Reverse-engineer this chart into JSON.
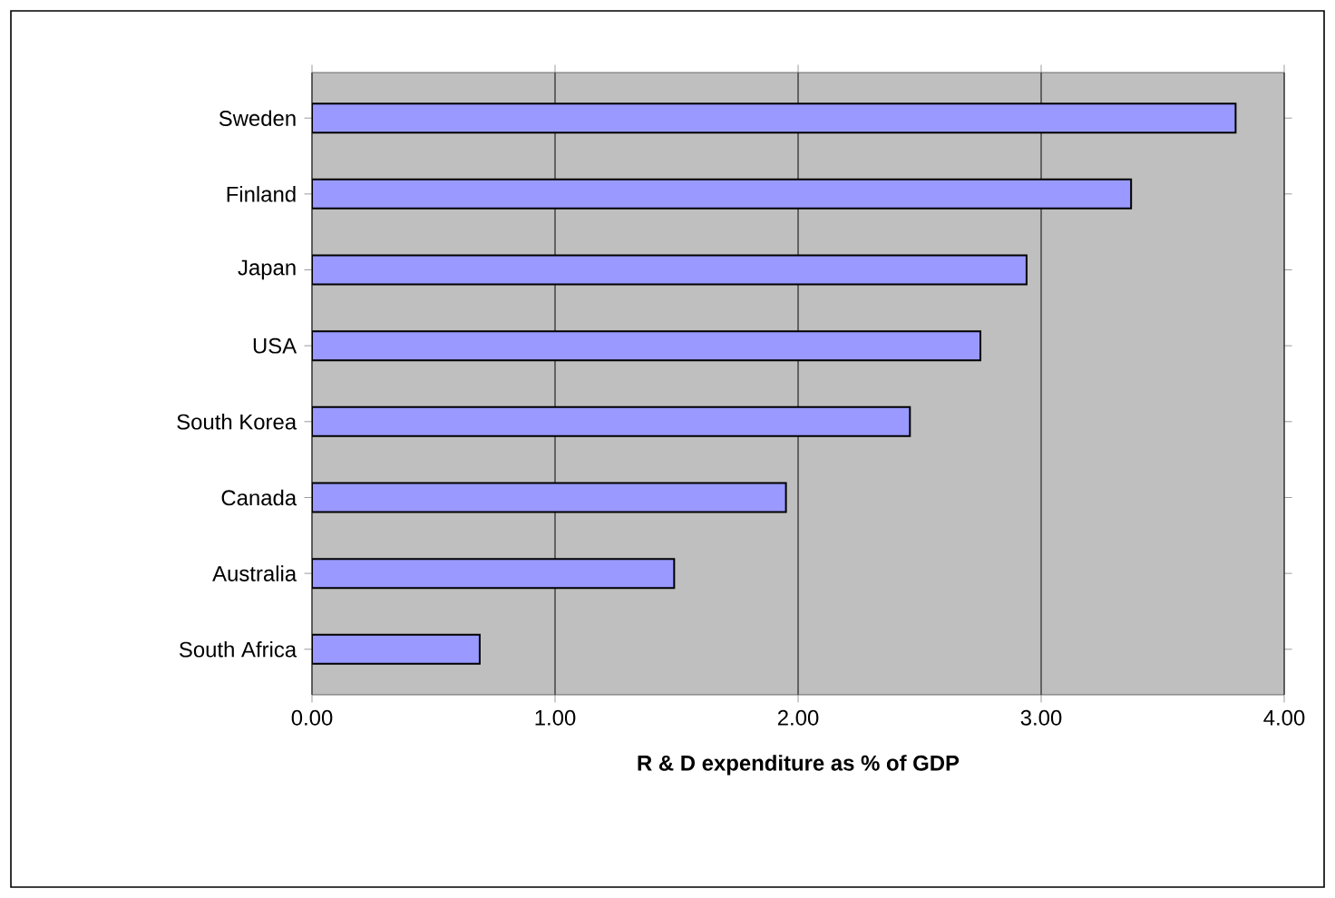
{
  "chart_data": {
    "type": "bar",
    "orientation": "horizontal",
    "xlabel": "**R & D expenditure as % of GDP**",
    "categories": [
      "Sweden",
      "Finland",
      "Japan",
      "USA",
      "South Korea",
      "Canada",
      "Australia",
      "South Africa"
    ],
    "values": [
      3.8,
      3.37,
      2.94,
      2.75,
      2.46,
      1.95,
      1.49,
      0.69
    ],
    "color": "#9999ff",
    "xlim": [
      0,
      4
    ],
    "xticks": [
      {
        "value": 0,
        "label": "0.00"
      },
      {
        "value": 1,
        "label": "1.00"
      },
      {
        "value": 2,
        "label": "2.00"
      },
      {
        "value": 3,
        "label": "3.00"
      },
      {
        "value": 4,
        "label": "4.00"
      }
    ],
    "grid": "x"
  }
}
